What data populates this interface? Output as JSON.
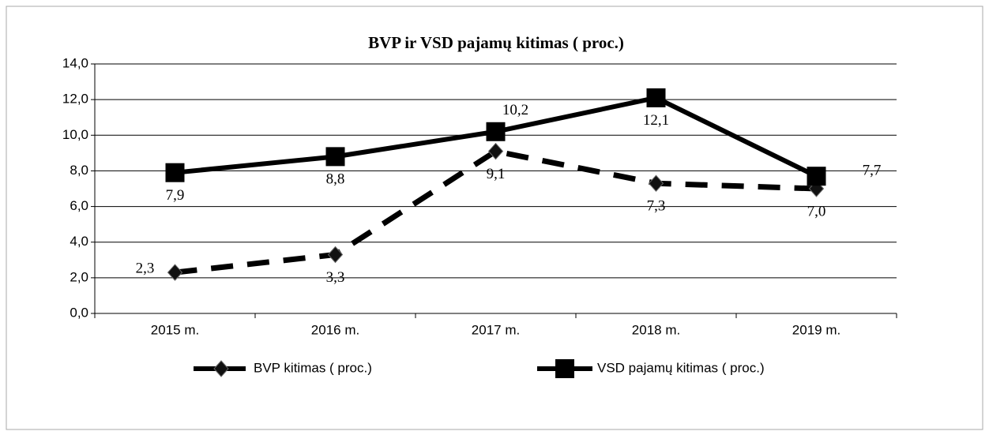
{
  "chart_data": {
    "type": "line",
    "title": "BVP ir VSD pajamų kitimas ( proc.)",
    "categories": [
      "2015 m.",
      "2016 m.",
      "2017 m.",
      "2018 m.",
      "2019 m."
    ],
    "series": [
      {
        "name": "BVP kitimas ( proc.)",
        "color": "#000000",
        "dash": true,
        "marker": "diamond",
        "values": [
          2.3,
          3.3,
          9.1,
          7.3,
          7.0
        ],
        "value_labels": [
          "2,3",
          "3,3",
          "9,1",
          "7,3",
          "7,0"
        ]
      },
      {
        "name": "VSD pajamų kitimas ( proc.)",
        "color": "#000000",
        "dash": false,
        "marker": "square",
        "values": [
          7.9,
          8.8,
          10.2,
          12.1,
          7.7
        ],
        "value_labels": [
          "7,9",
          "8,8",
          "10,2",
          "12,1",
          "7,7"
        ]
      }
    ],
    "ylim": [
      0,
      14
    ],
    "yticks": [
      {
        "value": 0,
        "label": "0,0"
      },
      {
        "value": 2,
        "label": "2,0"
      },
      {
        "value": 4,
        "label": "4,0"
      },
      {
        "value": 6,
        "label": "6,0"
      },
      {
        "value": 8,
        "label": "8,0"
      },
      {
        "value": 10,
        "label": "10,0"
      },
      {
        "value": 12,
        "label": "12,0"
      },
      {
        "value": 14,
        "label": "14,0"
      }
    ],
    "grid": true,
    "legend": "bottom"
  }
}
